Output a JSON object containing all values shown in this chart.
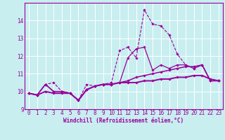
{
  "xlabel": "Windchill (Refroidissement éolien,°C)",
  "bg_color": "#c8eef0",
  "line_color": "#990099",
  "grid_color": "#ffffff",
  "spine_color": "#9966aa",
  "xlim": [
    -0.5,
    23.5
  ],
  "ylim": [
    9,
    15
  ],
  "yticks": [
    9,
    10,
    11,
    12,
    13,
    14
  ],
  "xticks": [
    0,
    1,
    2,
    3,
    4,
    5,
    6,
    7,
    8,
    9,
    10,
    11,
    12,
    13,
    14,
    15,
    16,
    17,
    18,
    19,
    20,
    21,
    22,
    23
  ],
  "series": [
    [
      9.9,
      9.8,
      10.4,
      10.5,
      10.0,
      9.9,
      9.5,
      10.4,
      10.3,
      10.4,
      10.5,
      12.3,
      12.5,
      11.9,
      14.6,
      13.8,
      13.7,
      13.2,
      12.1,
      11.5,
      11.3,
      11.5,
      10.6,
      10.6
    ],
    [
      9.9,
      9.8,
      10.4,
      10.0,
      10.0,
      9.9,
      9.5,
      10.1,
      10.3,
      10.4,
      10.4,
      10.5,
      11.9,
      12.4,
      12.5,
      11.2,
      11.5,
      11.3,
      11.5,
      11.5,
      11.3,
      11.5,
      10.6,
      10.6
    ],
    [
      9.9,
      9.8,
      10.4,
      10.0,
      10.0,
      9.9,
      9.5,
      10.1,
      10.3,
      10.4,
      10.4,
      10.5,
      10.6,
      10.8,
      10.9,
      11.0,
      11.1,
      11.2,
      11.3,
      11.4,
      11.4,
      11.5,
      10.6,
      10.6
    ],
    [
      9.9,
      9.8,
      10.0,
      9.9,
      9.9,
      9.9,
      9.5,
      10.1,
      10.3,
      10.4,
      10.4,
      10.5,
      10.5,
      10.5,
      10.6,
      10.6,
      10.7,
      10.7,
      10.8,
      10.8,
      10.9,
      10.9,
      10.7,
      10.6
    ]
  ],
  "line_styles": [
    "--",
    "-",
    "-",
    "-"
  ],
  "linewidths": [
    0.8,
    0.9,
    1.1,
    1.4
  ],
  "marker_size": 1.8,
  "xlabel_fontsize": 5.5,
  "tick_fontsize": 5.5
}
